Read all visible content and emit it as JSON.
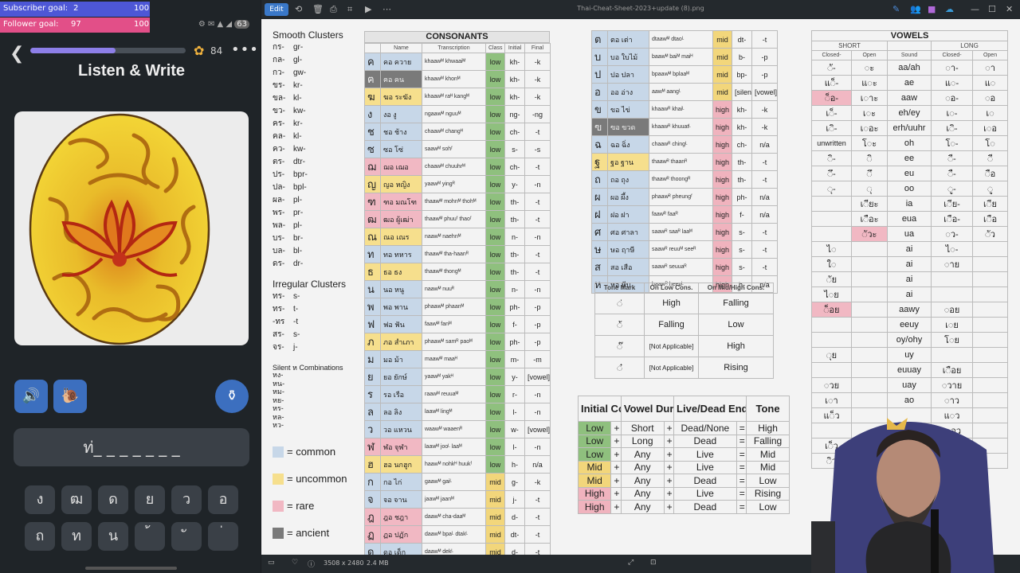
{
  "goals": {
    "subscriber_label": "Subscriber goal:",
    "subscriber_value": "2",
    "subscriber_target": "100",
    "follower_label": "Follower goal:",
    "follower_value": "97",
    "follower_target": "100"
  },
  "app": {
    "title": "Listen & Write",
    "gems": "84",
    "answer": "ท่_ _ _ _ _ _ _",
    "progress": 0.55,
    "status_battery": "63",
    "keys": [
      "ง",
      "ฒ",
      "ด",
      "ย",
      "ว",
      "อ",
      "ถ",
      "ท",
      "น",
      "้",
      "ั",
      "่"
    ]
  },
  "viewer": {
    "edit": "Edit",
    "filename": "Thai-Cheat-Sheet-2023+update (8).png",
    "dims": "3508 x 2480",
    "size": "2.4 MB"
  },
  "clusters": {
    "smooth_title": "Smooth Clusters",
    "smooth": [
      "กร-",
      "กล-",
      "กว-",
      "ขร-",
      "ขล-",
      "ขว-",
      "คร-",
      "คล-",
      "คว-",
      "ตร-",
      "ปร-",
      "ปล-",
      "ผล-",
      "พร-",
      "พล-",
      "บร-",
      "บล-",
      "ดร-"
    ],
    "smooth_tr": [
      "gr-",
      "gl-",
      "gw-",
      "kr-",
      "kl-",
      "kw-",
      "kr-",
      "kl-",
      "kw-",
      "dtr-",
      "bpr-",
      "bpl-",
      "pl-",
      "pr-",
      "pl-",
      "br-",
      "bl-",
      "dr-"
    ],
    "irregular_title": "Irregular Clusters",
    "irregular": [
      "ทร-",
      "ทร-",
      "-ทร",
      "สร-",
      "จร-"
    ],
    "irregular_tr": [
      "s-",
      "t-",
      "-t",
      "s-",
      "j-"
    ],
    "silent_title": "Silent ห Combinations",
    "silent": [
      "หง-",
      "หน-",
      "หม-",
      "หย-",
      "หร-",
      "หล-",
      "หว-"
    ]
  },
  "legend": [
    {
      "label": "= common",
      "color": "#c7d7e8"
    },
    {
      "label": "= uncommon",
      "color": "#f6df8d"
    },
    {
      "label": "= rare",
      "color": "#f1b8c3"
    },
    {
      "label": "= ancient",
      "color": "#7a7a7a"
    }
  ],
  "consonants": {
    "title": "CONSONANTS",
    "headers": [
      "Name",
      "Transcription",
      "Class",
      "Initial",
      "Final"
    ],
    "rows": [
      [
        "ค",
        "คอ ควาย",
        "khaawᴹ khwaaiᴹ",
        "low",
        "kh-",
        "-k",
        "bg-common"
      ],
      [
        "ฅ",
        "ฅอ คน",
        "khaawᴹ khonᴹ",
        "low",
        "kh-",
        "-k",
        "bg-ancient"
      ],
      [
        "ฆ",
        "ฆอ ระฆัง",
        "khaawᴹ raᴴ kangᴹ",
        "low",
        "kh-",
        "-k",
        "bg-uncommon"
      ],
      [
        "ง",
        "งอ งู",
        "ngaawᴹ nguuᴹ",
        "low",
        "ng-",
        "-ng",
        "bg-common"
      ],
      [
        "ช",
        "ชอ ช้าง",
        "chaawᴹ changᴴ",
        "low",
        "ch-",
        "-t",
        "bg-common"
      ],
      [
        "ซ",
        "ซอ โซ่",
        "saawᴹ sohᶠ",
        "low",
        "s-",
        "-s",
        "bg-common"
      ],
      [
        "ฌ",
        "ฌอ เฌอ",
        "chaawᴹ chuuhrᴹ",
        "low",
        "ch-",
        "-t",
        "bg-rare"
      ],
      [
        "ญ",
        "ญอ หญิง",
        "yaawᴹ yingᴿ",
        "low",
        "y-",
        "-n",
        "bg-uncommon"
      ],
      [
        "ฑ",
        "ฑอ มณโฑ",
        "thaawᴹ mohnᴹ thohᴹ",
        "low",
        "th-",
        "-t",
        "bg-rare"
      ],
      [
        "ฒ",
        "ฒอ ผู้เฒ่า",
        "thaawᴹ phuuᶠ thaoᶠ",
        "low",
        "th-",
        "-t",
        "bg-rare"
      ],
      [
        "ณ",
        "ณอ เณร",
        "naawᴹ naehnᴹ",
        "low",
        "n-",
        "-n",
        "bg-uncommon"
      ],
      [
        "ท",
        "ทอ ทหาร",
        "thaawᴹ tha-haanᴿ",
        "low",
        "th-",
        "-t",
        "bg-common"
      ],
      [
        "ธ",
        "ธอ ธง",
        "thaawᴹ thongᴹ",
        "low",
        "th-",
        "-t",
        "bg-uncommon"
      ],
      [
        "น",
        "นอ หนู",
        "naawᴹ nuuᴿ",
        "low",
        "n-",
        "-n",
        "bg-common"
      ],
      [
        "พ",
        "พอ พาน",
        "phaawᴹ phaanᴹ",
        "low",
        "ph-",
        "-p",
        "bg-common"
      ],
      [
        "ฟ",
        "ฟอ ฟัน",
        "faawᴹ fanᴹ",
        "low",
        "f-",
        "-p",
        "bg-common"
      ],
      [
        "ภ",
        "ภอ สำเภา",
        "phaawᴹ samᴿ paoᴹ",
        "low",
        "ph-",
        "-p",
        "bg-uncommon"
      ],
      [
        "ม",
        "มอ ม้า",
        "maawᴹ maaᴴ",
        "low",
        "m-",
        "-m",
        "bg-common"
      ],
      [
        "ย",
        "ยอ ยักษ์",
        "yaawᴹ yakᴴ",
        "low",
        "y-",
        "[vowel]",
        "bg-common"
      ],
      [
        "ร",
        "รอ เรือ",
        "raawᴹ reuuaᴹ",
        "low",
        "r-",
        "-n",
        "bg-common"
      ],
      [
        "ล",
        "ลอ ลิง",
        "laawᴹ lingᴹ",
        "low",
        "l-",
        "-n",
        "bg-common"
      ],
      [
        "ว",
        "วอ แหวน",
        "waawᴹ waaenᴿ",
        "low",
        "w-",
        "[vowel]",
        "bg-common"
      ],
      [
        "ฬ",
        "ฬอ จุฬา",
        "laawᴹ jooᴸ laaᴹ",
        "low",
        "l-",
        "-n",
        "bg-rare"
      ],
      [
        "ฮ",
        "ฮอ นกฮูก",
        "haawᴹ nohkᴴ huukᶠ",
        "low",
        "h-",
        "n/a",
        "bg-uncommon"
      ],
      [
        "ก",
        "กอ ไก่",
        "gaawᴹ gaiᴸ",
        "mid",
        "g-",
        "-k",
        "bg-common"
      ],
      [
        "จ",
        "จอ จาน",
        "jaawᴹ jaanᴹ",
        "mid",
        "j-",
        "-t",
        "bg-common"
      ],
      [
        "ฎ",
        "ฎอ ชฎา",
        "daawᴹ cha-daaᴹ",
        "mid",
        "d-",
        "-t",
        "bg-rare"
      ],
      [
        "ฏ",
        "ฏอ ปฏัก",
        "daawᴹ bpaᴸ dtakᴸ",
        "mid",
        "dt-",
        "-t",
        "bg-rare"
      ],
      [
        "ด",
        "ดอ เด็ก",
        "daawᴹ dekᴸ",
        "mid",
        "d-",
        "-t",
        "bg-common"
      ]
    ],
    "rows2": [
      [
        "ต",
        "ตอ เต่า",
        "dtaawᴹ dtaoᴸ",
        "mid",
        "dt-",
        "-t",
        "bg-common"
      ],
      [
        "บ",
        "บอ ใบไม้",
        "baawᴹ baiᴹ maiᴴ",
        "mid",
        "b-",
        "-p",
        "bg-common"
      ],
      [
        "ป",
        "ปอ ปลา",
        "bpaawᴹ bplaaᴹ",
        "mid",
        "bp-",
        "-p",
        "bg-common"
      ],
      [
        "อ",
        "ออ อ่าง",
        "aawᴹ aangᴸ",
        "mid",
        "[silent]",
        "[vowel]",
        "bg-common"
      ],
      [
        "ข",
        "ขอ ไข่",
        "khaawᴿ khaiᴸ",
        "high",
        "kh-",
        "-k",
        "bg-common"
      ],
      [
        "ฃ",
        "ฃอ ขวด",
        "khaawᴿ khuuatᴸ",
        "high",
        "kh-",
        "-k",
        "bg-ancient"
      ],
      [
        "ฉ",
        "ฉอ ฉิ่ง",
        "chaawᴿ chingᴸ",
        "high",
        "ch-",
        "n/a",
        "bg-common"
      ],
      [
        "ฐ",
        "ฐอ ฐาน",
        "thaawᴿ thaanᴿ",
        "high",
        "th-",
        "-t",
        "bg-uncommon"
      ],
      [
        "ถ",
        "ถอ ถุง",
        "thaawᴿ thoongᴿ",
        "high",
        "th-",
        "-t",
        "bg-common"
      ],
      [
        "ผ",
        "ผอ ผึ้ง",
        "phaawᴿ pheungᶠ",
        "high",
        "ph-",
        "n/a",
        "bg-common"
      ],
      [
        "ฝ",
        "ฝอ ฝา",
        "faawᴿ faaᴿ",
        "high",
        "f-",
        "n/a",
        "bg-common"
      ],
      [
        "ศ",
        "ศอ ศาลา",
        "saawᴿ saaᴿ laaᴹ",
        "high",
        "s-",
        "-t",
        "bg-common"
      ],
      [
        "ษ",
        "ษอ ฤาษี",
        "saawᴿ reuuᴹ seeᴿ",
        "high",
        "s-",
        "-t",
        "bg-common"
      ],
      [
        "ส",
        "สอ เสือ",
        "saawᴿ seuuaᴿ",
        "high",
        "s-",
        "-t",
        "bg-common"
      ],
      [
        "ห",
        "หอ หีบ",
        "haawᴿ heepᴸ",
        "high",
        "h-",
        "n/a",
        "bg-common"
      ]
    ]
  },
  "tone_marks": {
    "headers": [
      "Tone Mark",
      "On Low Cons.",
      "On Mid/High Cons."
    ],
    "rows": [
      [
        "◌่",
        "High",
        "Falling"
      ],
      [
        "◌้",
        "Falling",
        "Low"
      ],
      [
        "◌๊",
        "[Not Applicable]",
        "High"
      ],
      [
        "◌๋",
        "[Not Applicable]",
        "Rising"
      ]
    ]
  },
  "tone_rules": {
    "headers": [
      "Initial Cons.",
      "Vowel Duration",
      "Live/Dead End",
      "Tone"
    ],
    "rows": [
      [
        "Low",
        "Short",
        "Dead/None",
        "High",
        "low"
      ],
      [
        "Low",
        "Long",
        "Dead",
        "Falling",
        "low"
      ],
      [
        "Low",
        "Any",
        "Live",
        "Mid",
        "low"
      ],
      [
        "Mid",
        "Any",
        "Live",
        "Mid",
        "mid"
      ],
      [
        "Mid",
        "Any",
        "Dead",
        "Low",
        "mid"
      ],
      [
        "High",
        "Any",
        "Live",
        "Rising",
        "high"
      ],
      [
        "High",
        "Any",
        "Dead",
        "Low",
        "high"
      ]
    ]
  },
  "vowels": {
    "title": "VOWELS",
    "short": "SHORT",
    "long": "LONG",
    "subheaders": [
      "Closed-",
      "Open",
      "Sound",
      "Closed-",
      "Open"
    ],
    "rows": [
      [
        "◌ั-",
        "◌ะ",
        "aa/ah",
        "◌า-",
        "◌า",
        ""
      ],
      [
        "แ◌็-",
        "แ◌ะ",
        "ae",
        "แ◌-",
        "แ◌",
        ""
      ],
      [
        "◌็อ-",
        "เ◌าะ",
        "aaw",
        "◌อ-",
        "◌อ",
        "rare0"
      ],
      [
        "เ◌็-",
        "เ◌ะ",
        "eh/ey",
        "เ◌-",
        "เ◌",
        ""
      ],
      [
        "เ◌ิ-",
        "เ◌อะ",
        "erh/uuhr",
        "เ◌ิ-",
        "เ◌อ",
        ""
      ],
      [
        "unwritten",
        "โ◌ะ",
        "oh",
        "โ◌-",
        "โ◌",
        ""
      ],
      [
        "◌ิ-",
        "◌ิ",
        "ee",
        "◌ี-",
        "◌ี",
        ""
      ],
      [
        "◌ึ-",
        "◌ึ",
        "eu",
        "◌ื-",
        "◌ือ",
        ""
      ],
      [
        "◌ุ-",
        "◌ุ",
        "oo",
        "◌ู-",
        "◌ู",
        ""
      ],
      [
        "",
        "เ◌ียะ",
        "ia",
        "เ◌ีย-",
        "เ◌ีย",
        ""
      ],
      [
        "",
        "เ◌ือะ",
        "eua",
        "เ◌ือ-",
        "เ◌ือ",
        ""
      ],
      [
        "",
        "◌ัวะ",
        "ua",
        "◌ว-",
        "◌ัว",
        "rare1"
      ],
      [
        "ไ◌",
        "",
        "ai",
        "ไ◌-",
        "",
        ""
      ],
      [
        "ใ◌",
        "",
        "ai",
        "◌าย",
        "",
        ""
      ],
      [
        "◌ัย",
        "",
        "ai",
        "",
        "",
        ""
      ],
      [
        "ไ◌ย",
        "",
        "ai",
        "",
        "",
        ""
      ],
      [
        "◌็อย",
        "",
        "aawy",
        "◌อย",
        "",
        "rare0"
      ],
      [
        "",
        "",
        "eeuy",
        "เ◌ย",
        "",
        ""
      ],
      [
        "",
        "",
        "oy/ohy",
        "โ◌ย",
        "",
        ""
      ],
      [
        "◌ุย",
        "",
        "uy",
        "",
        "",
        ""
      ],
      [
        "",
        "",
        "euuay",
        "เ◌ือย",
        "",
        ""
      ],
      [
        "◌วย",
        "",
        "uay",
        "◌วาย",
        "",
        ""
      ],
      [
        "เ◌า",
        "",
        "ao",
        "◌าว",
        "",
        ""
      ],
      [
        "แ◌็ว",
        "",
        "",
        "แ◌ว",
        "",
        ""
      ],
      [
        "",
        "",
        "",
        "เ◌อว",
        "",
        ""
      ],
      [
        "เ◌็ว",
        "",
        "",
        "",
        "",
        ""
      ],
      [
        "◌ิว",
        "",
        "",
        "",
        "",
        ""
      ]
    ]
  }
}
